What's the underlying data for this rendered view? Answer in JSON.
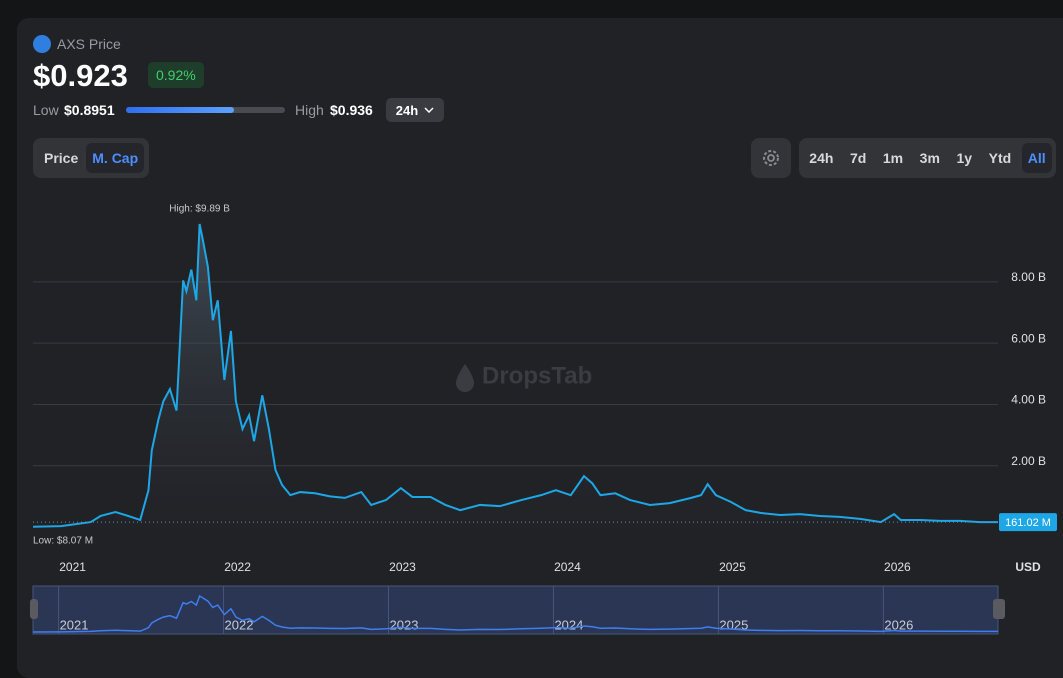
{
  "header": {
    "asset": "AXS Price",
    "price": "$0.923",
    "change": "0.92%",
    "low_label": "Low",
    "low": "$0.8951",
    "high_label": "High",
    "high": "$0.936",
    "period": "24h"
  },
  "tabs": [
    "Price",
    "M. Cap"
  ],
  "ranges": [
    "24h",
    "7d",
    "1m",
    "3m",
    "1y",
    "Ytd",
    "All"
  ],
  "watermark": "DropsTab",
  "chart_data": {
    "type": "area",
    "x": [
      2020.76,
      2020.93,
      2021.11,
      2021.17,
      2021.26,
      2021.32,
      2021.41,
      2021.46,
      2021.48,
      2021.52,
      2021.55,
      2021.59,
      2021.63,
      2021.67,
      2021.69,
      2021.72,
      2021.75,
      2021.77,
      2021.79,
      2021.82,
      2021.85,
      2021.88,
      2021.92,
      2021.96,
      2021.99,
      2022.03,
      2022.07,
      2022.1,
      2022.15,
      2022.19,
      2022.23,
      2022.27,
      2022.32,
      2022.38,
      2022.47,
      2022.56,
      2022.65,
      2022.75,
      2022.81,
      2022.9,
      2022.99,
      2023.06,
      2023.17,
      2023.26,
      2023.35,
      2023.47,
      2023.59,
      2023.72,
      2023.84,
      2023.93,
      2024.02,
      2024.1,
      2024.15,
      2024.2,
      2024.29,
      2024.38,
      2024.5,
      2024.62,
      2024.75,
      2024.81,
      2024.85,
      2024.9,
      2024.99,
      2025.08,
      2025.17,
      2025.29,
      2025.41,
      2025.53,
      2025.65,
      2025.78,
      2025.9,
      2025.98,
      2026.02,
      2026.14,
      2026.26,
      2026.38,
      2026.5,
      2026.61
    ],
    "series": [
      {
        "name": "M. Cap",
        "color": "#1ea7e6",
        "values": [
          0.00807,
          0.03,
          0.16,
          0.36,
          0.49,
          0.39,
          0.23,
          1.2,
          2.5,
          3.5,
          4.1,
          4.5,
          3.8,
          8.05,
          7.7,
          8.4,
          7.4,
          9.89,
          9.36,
          8.5,
          6.75,
          7.4,
          4.8,
          6.4,
          4.1,
          3.2,
          3.65,
          2.8,
          4.3,
          3.2,
          1.86,
          1.37,
          1.04,
          1.14,
          1.1,
          1.0,
          0.95,
          1.14,
          0.72,
          0.88,
          1.27,
          0.98,
          0.98,
          0.72,
          0.55,
          0.72,
          0.68,
          0.88,
          1.04,
          1.2,
          1.04,
          1.66,
          1.43,
          1.04,
          1.1,
          0.88,
          0.72,
          0.78,
          0.95,
          1.04,
          1.4,
          1.04,
          0.82,
          0.55,
          0.46,
          0.39,
          0.42,
          0.36,
          0.33,
          0.26,
          0.16,
          0.42,
          0.23,
          0.23,
          0.2,
          0.2,
          0.16,
          0.16102
        ]
      }
    ],
    "xlim": [
      2020.76,
      2026.61
    ],
    "xticks": [
      2021,
      2022,
      2023,
      2024,
      2025,
      2026
    ],
    "ylim": [
      0,
      11
    ],
    "yticks": [
      {
        "value": 2,
        "label": "2.00 B"
      },
      {
        "value": 4,
        "label": "4.00 B"
      },
      {
        "value": 6,
        "label": "6.00 B"
      },
      {
        "value": 8,
        "label": "8.00 B"
      }
    ],
    "y_label": "USD",
    "high_label": "High: $9.89 B",
    "low_label": "Low: $8.07 M",
    "last_label": "161.02 M",
    "grid": true
  }
}
